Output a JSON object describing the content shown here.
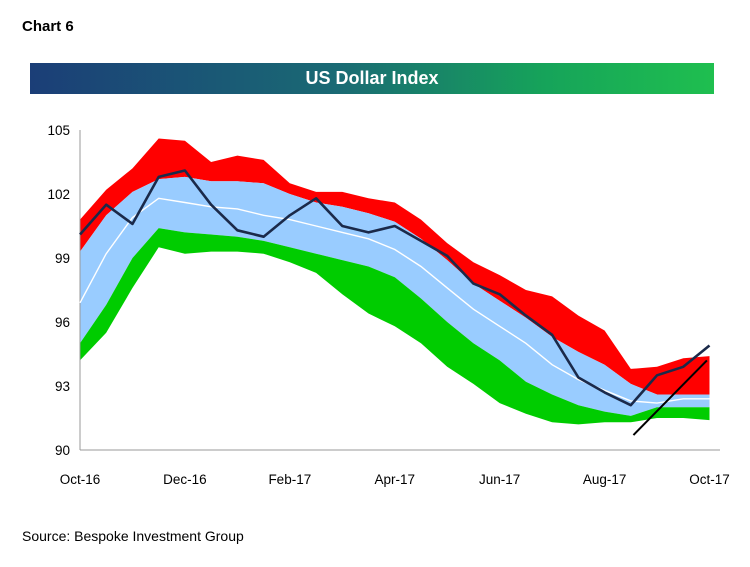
{
  "header": {
    "chart_label": "Chart 6"
  },
  "source_text": "Source: Bespoke Investment Group",
  "colors": {
    "banner_left": "#1b3e77",
    "banner_right": "#1fbf4f",
    "overbought_band": "#ff0000",
    "upper_band": "#99ccff",
    "lower_band": "#99ccff",
    "oversold_band": "#00cc00",
    "moving_average": "#ffffff",
    "price_line": "#1b2a4a",
    "trendline": "#000000"
  },
  "chart_data": {
    "type": "line",
    "title": "US Dollar Index",
    "xlabel": "",
    "ylabel": "",
    "ylim": [
      90,
      105
    ],
    "yticks": [
      90,
      93,
      96,
      99,
      102,
      105
    ],
    "ytick_labels": [
      "90",
      "93",
      "96",
      "99",
      "102",
      "105"
    ],
    "xticks": [
      "Oct-16",
      "Dec-16",
      "Feb-17",
      "Apr-17",
      "Jun-17",
      "Aug-17",
      "Oct-17"
    ],
    "xlim_index": [
      0,
      12.2
    ],
    "grid": false,
    "x_months_since_start": [
      0,
      0.5,
      1,
      1.5,
      2,
      2.5,
      3,
      3.5,
      4,
      4.5,
      5,
      5.5,
      6,
      6.5,
      7,
      7.5,
      8,
      8.5,
      9,
      9.5,
      10,
      10.5,
      11,
      11.5,
      12
    ],
    "series": [
      {
        "key": "price",
        "values": [
          100.1,
          101.5,
          100.6,
          102.8,
          103.1,
          101.5,
          100.3,
          100.0,
          101.0,
          101.8,
          100.5,
          100.2,
          100.5,
          99.8,
          99.1,
          97.8,
          97.3,
          96.3,
          95.4,
          93.4,
          92.7,
          92.1,
          93.5,
          93.9,
          94.9
        ]
      },
      {
        "key": "overbought_top",
        "values": [
          100.8,
          102.2,
          103.2,
          104.6,
          104.5,
          103.5,
          103.8,
          103.6,
          102.5,
          102.1,
          102.1,
          101.8,
          101.6,
          100.8,
          99.7,
          98.8,
          98.2,
          97.5,
          97.2,
          96.3,
          95.6,
          93.8,
          93.9,
          94.3,
          94.4
        ]
      },
      {
        "key": "upper_band",
        "values": [
          99.3,
          101.0,
          102.1,
          102.7,
          102.8,
          102.6,
          102.6,
          102.5,
          102.0,
          101.6,
          101.4,
          101.1,
          100.7,
          99.9,
          98.9,
          97.8,
          97.0,
          96.2,
          95.3,
          94.6,
          94.0,
          93.1,
          92.6,
          92.6,
          92.6
        ]
      },
      {
        "key": "moving_average",
        "values": [
          96.9,
          99.2,
          100.9,
          101.8,
          101.6,
          101.4,
          101.3,
          101.0,
          100.8,
          100.5,
          100.2,
          99.9,
          99.4,
          98.6,
          97.6,
          96.6,
          95.8,
          95.0,
          94.0,
          93.3,
          92.8,
          92.3,
          92.2,
          92.4,
          92.4
        ]
      },
      {
        "key": "lower_band",
        "values": [
          95.0,
          96.8,
          99.0,
          100.4,
          100.2,
          100.1,
          100.0,
          99.8,
          99.5,
          99.2,
          98.9,
          98.6,
          98.1,
          97.1,
          96.0,
          95.0,
          94.2,
          93.2,
          92.6,
          92.1,
          91.8,
          91.6,
          92.0,
          92.0,
          92.0
        ]
      },
      {
        "key": "oversold_bottom",
        "values": [
          94.2,
          95.5,
          97.6,
          99.5,
          99.2,
          99.3,
          99.3,
          99.2,
          98.8,
          98.3,
          97.3,
          96.4,
          95.8,
          95.0,
          93.9,
          93.1,
          92.2,
          91.7,
          91.3,
          91.2,
          91.3,
          91.3,
          91.5,
          91.5,
          91.4
        ]
      }
    ],
    "trendline": {
      "x": [
        10.55,
        11.95
      ],
      "y": [
        90.7,
        94.2
      ]
    }
  }
}
